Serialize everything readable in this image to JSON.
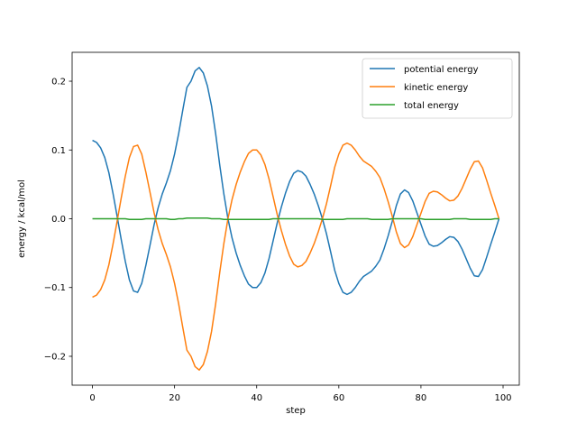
{
  "chart_data": {
    "type": "line",
    "title": "",
    "xlabel": "step",
    "ylabel": "energy / kcal/mol",
    "xlim": [
      -4.95,
      103.95
    ],
    "ylim": [
      -0.242,
      0.242
    ],
    "xticks": [
      0,
      20,
      40,
      60,
      80,
      100
    ],
    "yticks": [
      -0.2,
      -0.1,
      0.0,
      0.1,
      0.2
    ],
    "ytick_labels": [
      "−0.2",
      "−0.1",
      "0.0",
      "0.1",
      "0.2"
    ],
    "grid": false,
    "legend": "top-right",
    "x": [
      0,
      1,
      2,
      3,
      4,
      5,
      6,
      7,
      8,
      9,
      10,
      11,
      12,
      13,
      14,
      15,
      16,
      17,
      18,
      19,
      20,
      21,
      22,
      23,
      24,
      25,
      26,
      27,
      28,
      29,
      30,
      31,
      32,
      33,
      34,
      35,
      36,
      37,
      38,
      39,
      40,
      41,
      42,
      43,
      44,
      45,
      46,
      47,
      48,
      49,
      50,
      51,
      52,
      53,
      54,
      55,
      56,
      57,
      58,
      59,
      60,
      61,
      62,
      63,
      64,
      65,
      66,
      67,
      68,
      69,
      70,
      71,
      72,
      73,
      74,
      75,
      76,
      77,
      78,
      79,
      80,
      81,
      82,
      83,
      84,
      85,
      86,
      87,
      88,
      89,
      90,
      91,
      92,
      93,
      94,
      95,
      96,
      97,
      98,
      99
    ],
    "series": [
      {
        "name": "potential energy",
        "color": "#1f77b4",
        "values": [
          0.114,
          0.111,
          0.103,
          0.089,
          0.067,
          0.037,
          0.004,
          -0.03,
          -0.062,
          -0.089,
          -0.105,
          -0.107,
          -0.094,
          -0.068,
          -0.039,
          -0.009,
          0.016,
          0.036,
          0.052,
          0.07,
          0.094,
          0.124,
          0.158,
          0.191,
          0.2,
          0.215,
          0.22,
          0.212,
          0.193,
          0.164,
          0.124,
          0.078,
          0.036,
          0.0,
          -0.028,
          -0.05,
          -0.068,
          -0.083,
          -0.095,
          -0.1,
          -0.1,
          -0.093,
          -0.079,
          -0.058,
          -0.032,
          -0.006,
          0.017,
          0.037,
          0.054,
          0.066,
          0.07,
          0.068,
          0.062,
          0.05,
          0.036,
          0.019,
          0.0,
          -0.022,
          -0.048,
          -0.075,
          -0.094,
          -0.107,
          -0.11,
          -0.107,
          -0.1,
          -0.091,
          -0.084,
          -0.08,
          -0.076,
          -0.069,
          -0.06,
          -0.044,
          -0.025,
          -0.004,
          0.019,
          0.036,
          0.042,
          0.038,
          0.026,
          0.009,
          -0.008,
          -0.025,
          -0.037,
          -0.04,
          -0.039,
          -0.035,
          -0.03,
          -0.026,
          -0.027,
          -0.033,
          -0.044,
          -0.058,
          -0.072,
          -0.083,
          -0.084,
          -0.074,
          -0.056,
          -0.037,
          -0.019,
          0.0
        ]
      },
      {
        "name": "kinetic energy",
        "color": "#ff7f0e",
        "values": [
          -0.114,
          -0.111,
          -0.103,
          -0.089,
          -0.067,
          -0.037,
          -0.004,
          0.03,
          0.062,
          0.089,
          0.105,
          0.107,
          0.094,
          0.068,
          0.039,
          0.009,
          -0.016,
          -0.036,
          -0.052,
          -0.07,
          -0.094,
          -0.124,
          -0.158,
          -0.191,
          -0.2,
          -0.215,
          -0.22,
          -0.212,
          -0.193,
          -0.164,
          -0.124,
          -0.078,
          -0.036,
          0.0,
          0.028,
          0.05,
          0.068,
          0.083,
          0.095,
          0.1,
          0.1,
          0.093,
          0.079,
          0.058,
          0.032,
          0.006,
          -0.017,
          -0.037,
          -0.054,
          -0.066,
          -0.07,
          -0.068,
          -0.062,
          -0.05,
          -0.036,
          -0.019,
          0.0,
          0.022,
          0.048,
          0.075,
          0.094,
          0.107,
          0.11,
          0.107,
          0.1,
          0.091,
          0.084,
          0.08,
          0.076,
          0.069,
          0.06,
          0.044,
          0.025,
          0.004,
          -0.019,
          -0.036,
          -0.042,
          -0.038,
          -0.026,
          -0.009,
          0.008,
          0.025,
          0.037,
          0.04,
          0.039,
          0.035,
          0.03,
          0.026,
          0.027,
          0.033,
          0.044,
          0.058,
          0.072,
          0.083,
          0.084,
          0.074,
          0.056,
          0.037,
          0.019,
          0.0
        ]
      },
      {
        "name": "total energy",
        "color": "#2ca02c",
        "values": [
          0.0,
          0.0,
          0.0,
          0.0,
          0.0,
          0.0,
          0.0,
          0.0,
          0.0,
          -0.001,
          -0.001,
          -0.001,
          -0.001,
          0.0,
          0.0,
          0.0,
          0.0,
          0.0,
          0.0,
          -0.001,
          -0.001,
          0.0,
          0.0,
          0.001,
          0.001,
          0.001,
          0.001,
          0.001,
          0.001,
          0.0,
          0.0,
          0.0,
          -0.001,
          -0.001,
          -0.001,
          -0.001,
          -0.001,
          -0.001,
          -0.001,
          -0.001,
          -0.001,
          -0.001,
          -0.001,
          -0.001,
          0.0,
          0.0,
          0.0,
          0.0,
          0.0,
          0.0,
          0.0,
          0.0,
          0.0,
          0.0,
          0.0,
          0.0,
          -0.001,
          -0.001,
          -0.001,
          -0.001,
          -0.001,
          -0.001,
          0.0,
          0.0,
          0.0,
          0.0,
          0.0,
          0.0,
          -0.001,
          -0.001,
          -0.001,
          -0.001,
          -0.001,
          0.0,
          0.0,
          0.0,
          0.0,
          0.0,
          0.0,
          0.0,
          0.0,
          -0.001,
          -0.001,
          -0.001,
          -0.001,
          -0.001,
          -0.001,
          -0.001,
          0.0,
          0.0,
          0.0,
          0.0,
          -0.001,
          -0.001,
          -0.001,
          -0.001,
          -0.001,
          -0.001,
          0.0,
          0.0
        ]
      }
    ]
  }
}
